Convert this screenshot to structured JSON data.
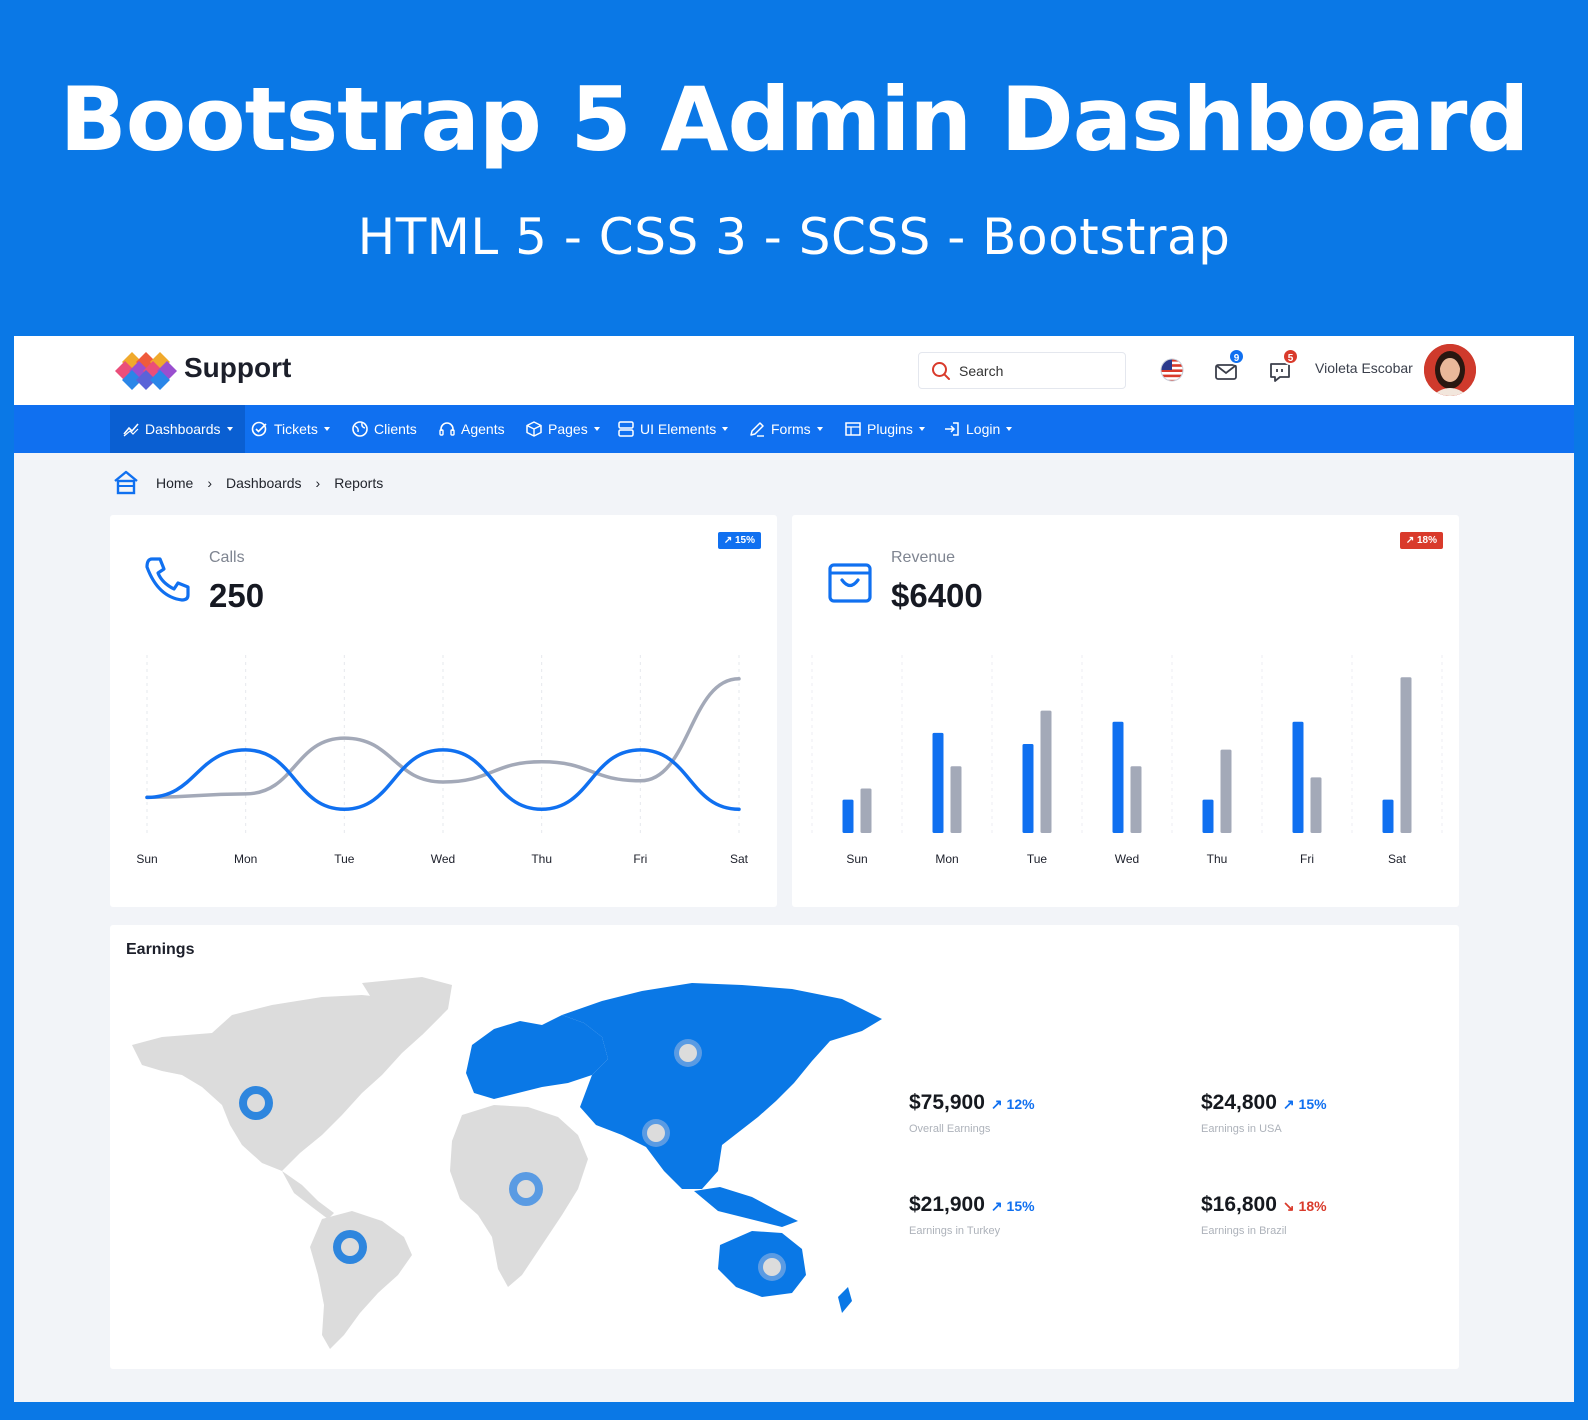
{
  "hero": {
    "title": "Bootstrap 5 Admin Dashboard",
    "subtitle": "HTML 5 - CSS 3 - SCSS - Bootstrap"
  },
  "topbar": {
    "brand": "Support",
    "search_placeholder": "Search",
    "mail_count": "9",
    "chat_count": "5",
    "user_name": "Violeta Escobar"
  },
  "nav": {
    "items": [
      {
        "label": "Dashboards",
        "dropdown": true,
        "active": true
      },
      {
        "label": "Tickets",
        "dropdown": true
      },
      {
        "label": "Clients",
        "dropdown": false
      },
      {
        "label": "Agents",
        "dropdown": false
      },
      {
        "label": "Pages",
        "dropdown": true
      },
      {
        "label": "UI Elements",
        "dropdown": true
      },
      {
        "label": "Forms",
        "dropdown": true
      },
      {
        "label": "Plugins",
        "dropdown": true
      },
      {
        "label": "Login",
        "dropdown": true
      }
    ]
  },
  "breadcrumb": [
    "Home",
    "Dashboards",
    "Reports"
  ],
  "calls": {
    "label": "Calls",
    "value": "250",
    "trend": "15%"
  },
  "revenue": {
    "label": "Revenue",
    "value": "$6400",
    "trend": "18%"
  },
  "earnings": {
    "title": "Earnings",
    "stats": [
      {
        "value": "$75,900",
        "pct": "12%",
        "label": "Overall Earnings",
        "direction": "up"
      },
      {
        "value": "$24,800",
        "pct": "15%",
        "label": "Earnings in USA",
        "direction": "up"
      },
      {
        "value": "$21,900",
        "pct": "15%",
        "label": "Earnings in Turkey",
        "direction": "up"
      },
      {
        "value": "$16,800",
        "pct": "18%",
        "label": "Earnings in Brazil",
        "direction": "down"
      }
    ]
  },
  "colors": {
    "primary": "#1070f0",
    "secondary": "#a3a9b8",
    "danger": "#d93a2b",
    "map_gray": "#dcdcdc",
    "map_blue": "#0a78e6"
  },
  "chart_data": [
    {
      "type": "line",
      "categories": [
        "Sun",
        "Mon",
        "Tue",
        "Wed",
        "Thu",
        "Fri",
        "Sat"
      ],
      "series": [
        {
          "values": [
            3,
            7,
            2,
            7,
            2,
            7,
            2
          ],
          "color": "#1070f0"
        },
        {
          "values": [
            3,
            3.3,
            8,
            4.3,
            6,
            4.4,
            13
          ],
          "color": "#a3a9b8"
        }
      ],
      "ylim": [
        0,
        15
      ],
      "grid": "vertical-dashed"
    },
    {
      "type": "bar",
      "categories": [
        "Sun",
        "Mon",
        "Tue",
        "Wed",
        "Thu",
        "Fri",
        "Sat"
      ],
      "series": [
        {
          "values": [
            3,
            9,
            8,
            10,
            3,
            10,
            3
          ],
          "color": "#1070f0"
        },
        {
          "values": [
            4,
            6,
            11,
            6,
            7.5,
            5,
            14
          ],
          "color": "#a3a9b8"
        }
      ],
      "ylim": [
        0,
        16
      ],
      "grid": "vertical-dashed"
    }
  ]
}
